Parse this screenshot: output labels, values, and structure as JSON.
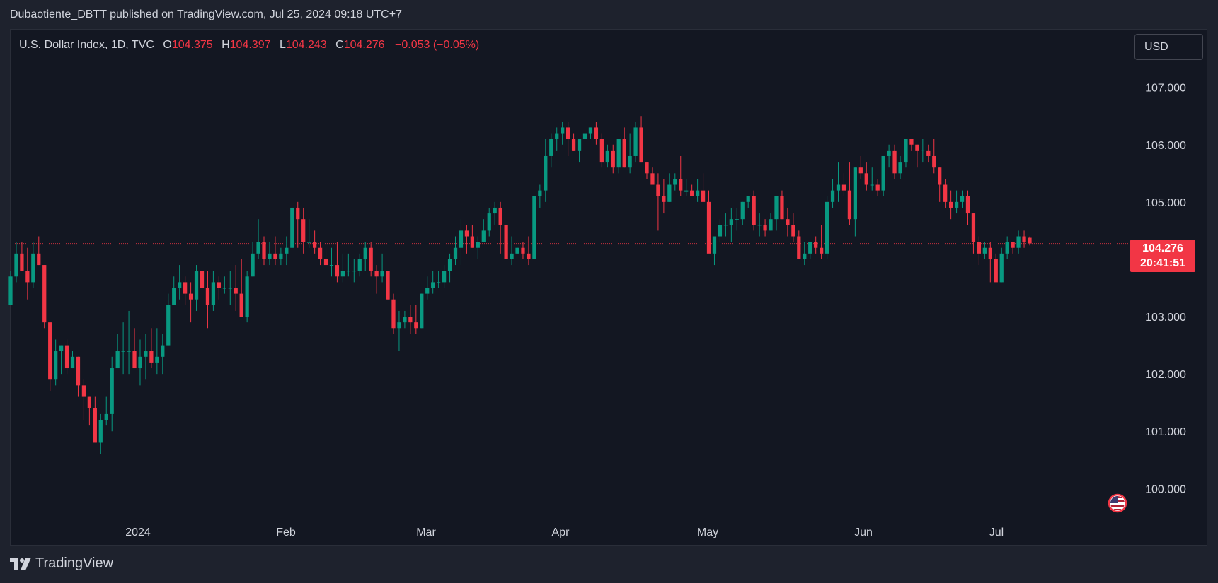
{
  "header": {
    "publisher_line": "Dubaotiente_DBTT published on TradingView.com, Jul 25, 2024 09:18 UTC+7"
  },
  "legend": {
    "symbol": "U.S. Dollar Index, 1D, TVC",
    "open_label": "O",
    "open": "104.375",
    "high_label": "H",
    "high": "104.397",
    "low_label": "L",
    "low": "104.243",
    "close_label": "C",
    "close": "104.276",
    "change": "−0.053 (−0.05%)"
  },
  "currency_button": "USD",
  "price_badge": {
    "price": "104.276",
    "countdown": "20:41:51"
  },
  "footer": {
    "brand": "TradingView"
  },
  "colors": {
    "up": "#089981",
    "down": "#f23645",
    "background": "#131722",
    "text": "#d1d4dc"
  },
  "icons": {
    "logo": "tradingview-logo-icon",
    "flag": "us-flag-icon"
  },
  "chart_data": {
    "type": "candlestick",
    "title": "U.S. Dollar Index, 1D, TVC",
    "ylim": [
      99.4,
      107.6
    ],
    "y_ticks": [
      "107.000",
      "106.000",
      "105.000",
      "103.000",
      "102.000",
      "101.000",
      "100.000"
    ],
    "x_ticks": [
      "2024",
      "Feb",
      "Mar",
      "Apr",
      "May",
      "Jun",
      "Jul"
    ],
    "last_price": 104.276,
    "series": [
      {
        "name": "ohlc",
        "values": [
          [
            103.2,
            103.8,
            103.2,
            103.7
          ],
          [
            103.7,
            104.3,
            103.6,
            104.1
          ],
          [
            104.1,
            104.3,
            103.8,
            103.8
          ],
          [
            103.8,
            104.2,
            103.3,
            103.6
          ],
          [
            103.6,
            104.3,
            103.5,
            104.1
          ],
          [
            104.1,
            104.4,
            103.9,
            103.9
          ],
          [
            103.9,
            103.9,
            102.8,
            102.9
          ],
          [
            102.9,
            102.9,
            101.7,
            101.9
          ],
          [
            101.9,
            102.6,
            101.8,
            102.4
          ],
          [
            102.4,
            102.5,
            102.0,
            102.5
          ],
          [
            102.5,
            102.6,
            102.0,
            102.1
          ],
          [
            102.1,
            102.4,
            102.1,
            102.3
          ],
          [
            102.3,
            102.3,
            101.6,
            101.8
          ],
          [
            101.8,
            101.9,
            101.2,
            101.6
          ],
          [
            101.6,
            101.6,
            101.1,
            101.4
          ],
          [
            101.4,
            101.6,
            100.8,
            100.8
          ],
          [
            100.8,
            101.3,
            100.6,
            101.2
          ],
          [
            101.2,
            101.6,
            101.1,
            101.3
          ],
          [
            101.3,
            102.3,
            101.0,
            102.1
          ],
          [
            102.1,
            102.7,
            102.1,
            102.4
          ],
          [
            102.4,
            102.9,
            102.0,
            102.4
          ],
          [
            102.4,
            103.1,
            102.0,
            102.4
          ],
          [
            102.4,
            102.8,
            102.1,
            102.1
          ],
          [
            102.1,
            102.6,
            101.8,
            102.3
          ],
          [
            102.3,
            102.7,
            101.9,
            102.4
          ],
          [
            102.4,
            102.8,
            102.1,
            102.2
          ],
          [
            102.2,
            102.8,
            102.0,
            102.3
          ],
          [
            102.3,
            102.7,
            102.0,
            102.5
          ],
          [
            102.5,
            103.4,
            102.5,
            103.2
          ],
          [
            103.2,
            103.7,
            103.3,
            103.5
          ],
          [
            103.5,
            103.9,
            103.3,
            103.6
          ],
          [
            103.6,
            103.7,
            103.2,
            103.4
          ],
          [
            103.4,
            103.6,
            102.9,
            103.3
          ],
          [
            103.3,
            103.9,
            103.1,
            103.8
          ],
          [
            103.8,
            104.0,
            103.3,
            103.5
          ],
          [
            103.5,
            103.8,
            102.8,
            103.2
          ],
          [
            103.2,
            103.8,
            103.1,
            103.6
          ],
          [
            103.6,
            103.7,
            103.3,
            103.5
          ],
          [
            103.5,
            103.7,
            103.4,
            103.5
          ],
          [
            103.5,
            103.8,
            103.2,
            103.5
          ],
          [
            103.5,
            103.9,
            103.1,
            103.4
          ],
          [
            103.4,
            104.0,
            103.0,
            103.0
          ],
          [
            103.0,
            103.8,
            102.9,
            103.7
          ],
          [
            103.7,
            104.3,
            103.7,
            104.1
          ],
          [
            104.1,
            104.7,
            104.0,
            104.3
          ],
          [
            104.3,
            104.4,
            103.9,
            104.0
          ],
          [
            104.0,
            104.3,
            103.9,
            104.1
          ],
          [
            104.1,
            104.4,
            103.9,
            104.0
          ],
          [
            104.0,
            104.2,
            103.9,
            104.1
          ],
          [
            104.1,
            104.4,
            103.9,
            104.2
          ],
          [
            104.2,
            104.9,
            104.2,
            104.9
          ],
          [
            104.9,
            105.0,
            104.2,
            104.7
          ],
          [
            104.7,
            104.9,
            104.1,
            104.3
          ],
          [
            104.3,
            104.7,
            104.2,
            104.3
          ],
          [
            104.3,
            104.5,
            104.1,
            104.2
          ],
          [
            104.2,
            104.3,
            103.9,
            104.0
          ],
          [
            104.0,
            104.2,
            103.9,
            103.9
          ],
          [
            103.9,
            104.2,
            103.7,
            103.9
          ],
          [
            103.9,
            104.3,
            103.6,
            103.7
          ],
          [
            103.7,
            104.1,
            103.6,
            103.8
          ],
          [
            103.8,
            104.1,
            103.7,
            103.8
          ],
          [
            103.8,
            104.0,
            103.6,
            103.8
          ],
          [
            103.8,
            104.1,
            103.7,
            104.0
          ],
          [
            104.0,
            104.3,
            103.8,
            104.2
          ],
          [
            104.2,
            104.3,
            103.7,
            103.8
          ],
          [
            103.8,
            103.9,
            103.4,
            103.7
          ],
          [
            103.7,
            104.1,
            103.6,
            103.8
          ],
          [
            103.8,
            103.8,
            103.3,
            103.3
          ],
          [
            103.3,
            103.4,
            102.7,
            102.8
          ],
          [
            102.8,
            103.1,
            102.4,
            102.9
          ],
          [
            102.9,
            103.1,
            102.8,
            103.0
          ],
          [
            103.0,
            103.2,
            102.7,
            102.9
          ],
          [
            102.9,
            103.2,
            102.7,
            102.8
          ],
          [
            102.8,
            103.4,
            102.8,
            103.4
          ],
          [
            103.4,
            103.7,
            103.3,
            103.5
          ],
          [
            103.5,
            103.8,
            103.4,
            103.6
          ],
          [
            103.6,
            103.8,
            103.5,
            103.6
          ],
          [
            103.6,
            103.9,
            103.5,
            103.8
          ],
          [
            103.8,
            104.1,
            103.6,
            104.0
          ],
          [
            104.0,
            104.4,
            103.9,
            104.2
          ],
          [
            104.2,
            104.7,
            103.9,
            104.5
          ],
          [
            104.5,
            104.6,
            104.1,
            104.4
          ],
          [
            104.4,
            104.6,
            104.2,
            104.2
          ],
          [
            104.2,
            104.4,
            104.0,
            104.3
          ],
          [
            104.3,
            104.7,
            104.3,
            104.5
          ],
          [
            104.5,
            104.9,
            104.4,
            104.8
          ],
          [
            104.8,
            105.0,
            104.6,
            104.9
          ],
          [
            104.9,
            105.0,
            104.1,
            104.6
          ],
          [
            104.6,
            104.6,
            104.0,
            104.0
          ],
          [
            104.0,
            104.4,
            103.9,
            104.1
          ],
          [
            104.1,
            104.2,
            104.1,
            104.2
          ],
          [
            104.2,
            104.3,
            104.0,
            104.1
          ],
          [
            104.1,
            104.4,
            103.9,
            104.0
          ],
          [
            104.0,
            105.1,
            104.0,
            105.1
          ],
          [
            105.1,
            105.3,
            104.9,
            105.2
          ],
          [
            105.2,
            106.1,
            105.0,
            105.8
          ],
          [
            105.8,
            106.2,
            105.6,
            106.1
          ],
          [
            106.1,
            106.3,
            105.9,
            106.2
          ],
          [
            106.2,
            106.4,
            106.0,
            106.3
          ],
          [
            106.3,
            106.4,
            105.8,
            106.1
          ],
          [
            106.1,
            106.2,
            105.9,
            105.9
          ],
          [
            105.9,
            106.1,
            105.7,
            106.1
          ],
          [
            106.1,
            106.2,
            106.0,
            106.2
          ],
          [
            106.2,
            106.3,
            106.1,
            106.3
          ],
          [
            106.3,
            106.4,
            106.0,
            106.1
          ],
          [
            106.1,
            106.2,
            105.6,
            105.7
          ],
          [
            105.7,
            106.0,
            105.6,
            105.9
          ],
          [
            105.9,
            106.0,
            105.5,
            105.6
          ],
          [
            105.6,
            106.1,
            105.5,
            106.1
          ],
          [
            106.1,
            106.3,
            105.6,
            105.6
          ],
          [
            105.6,
            106.2,
            105.5,
            105.8
          ],
          [
            105.8,
            106.4,
            105.7,
            106.3
          ],
          [
            106.3,
            106.5,
            105.7,
            105.7
          ],
          [
            105.7,
            105.7,
            105.4,
            105.5
          ],
          [
            105.5,
            105.6,
            105.3,
            105.3
          ],
          [
            105.3,
            105.5,
            104.5,
            105.1
          ],
          [
            105.1,
            105.4,
            104.8,
            105.0
          ],
          [
            105.0,
            105.5,
            105.0,
            105.3
          ],
          [
            105.3,
            105.5,
            105.2,
            105.4
          ],
          [
            105.4,
            105.8,
            105.1,
            105.2
          ],
          [
            105.2,
            105.4,
            105.1,
            105.2
          ],
          [
            105.2,
            105.3,
            105.1,
            105.1
          ],
          [
            105.1,
            105.4,
            105.0,
            105.2
          ],
          [
            105.2,
            105.5,
            105.0,
            105.0
          ],
          [
            105.0,
            105.2,
            104.7,
            104.1
          ],
          [
            104.1,
            104.3,
            103.9,
            104.4
          ],
          [
            104.4,
            104.7,
            104.3,
            104.6
          ],
          [
            104.6,
            104.8,
            104.4,
            104.6
          ],
          [
            104.6,
            104.9,
            104.3,
            104.7
          ],
          [
            104.7,
            104.9,
            104.5,
            104.7
          ],
          [
            104.7,
            105.0,
            104.6,
            105.0
          ],
          [
            105.0,
            105.1,
            104.9,
            105.1
          ],
          [
            105.1,
            105.2,
            104.5,
            104.6
          ],
          [
            104.6,
            104.8,
            104.4,
            104.6
          ],
          [
            104.6,
            104.7,
            104.4,
            104.5
          ],
          [
            104.5,
            104.8,
            104.5,
            104.7
          ],
          [
            104.7,
            105.1,
            104.5,
            105.1
          ],
          [
            105.1,
            105.2,
            104.7,
            104.7
          ],
          [
            104.7,
            104.9,
            104.4,
            104.6
          ],
          [
            104.6,
            104.8,
            104.3,
            104.4
          ],
          [
            104.4,
            104.5,
            104.0,
            104.0
          ],
          [
            104.0,
            104.3,
            103.9,
            104.1
          ],
          [
            104.1,
            104.3,
            104.0,
            104.3
          ],
          [
            104.3,
            104.4,
            104.1,
            104.2
          ],
          [
            104.2,
            104.6,
            104.0,
            104.1
          ],
          [
            104.1,
            105.1,
            104.0,
            105.0
          ],
          [
            105.0,
            105.4,
            104.9,
            105.2
          ],
          [
            105.2,
            105.7,
            105.0,
            105.3
          ],
          [
            105.3,
            105.5,
            105.1,
            105.2
          ],
          [
            105.2,
            105.7,
            104.6,
            104.7
          ],
          [
            104.7,
            105.6,
            104.4,
            105.6
          ],
          [
            105.6,
            105.8,
            105.4,
            105.5
          ],
          [
            105.5,
            105.7,
            105.2,
            105.3
          ],
          [
            105.3,
            105.6,
            105.2,
            105.3
          ],
          [
            105.3,
            105.4,
            105.1,
            105.2
          ],
          [
            105.2,
            105.8,
            105.1,
            105.8
          ],
          [
            105.8,
            106.0,
            105.6,
            105.9
          ],
          [
            105.9,
            106.0,
            105.4,
            105.5
          ],
          [
            105.5,
            105.8,
            105.4,
            105.7
          ],
          [
            105.7,
            106.1,
            105.6,
            106.1
          ],
          [
            106.1,
            106.1,
            105.9,
            106.0
          ],
          [
            106.0,
            106.0,
            105.6,
            105.9
          ],
          [
            105.9,
            106.1,
            105.7,
            105.9
          ],
          [
            105.9,
            106.0,
            105.7,
            105.8
          ],
          [
            105.8,
            106.1,
            105.5,
            105.6
          ],
          [
            105.6,
            105.6,
            105.0,
            105.3
          ],
          [
            105.3,
            105.4,
            104.9,
            105.0
          ],
          [
            105.0,
            105.2,
            104.7,
            104.9
          ],
          [
            104.9,
            105.2,
            104.8,
            105.0
          ],
          [
            105.0,
            105.2,
            104.9,
            105.1
          ],
          [
            105.1,
            105.2,
            104.6,
            104.8
          ],
          [
            104.8,
            104.8,
            104.1,
            104.3
          ],
          [
            104.3,
            104.4,
            103.9,
            104.1
          ],
          [
            104.1,
            104.3,
            104.0,
            104.2
          ],
          [
            104.2,
            104.3,
            103.6,
            104.0
          ],
          [
            104.0,
            104.1,
            103.7,
            103.6
          ],
          [
            103.6,
            104.2,
            103.6,
            104.1
          ],
          [
            104.1,
            104.4,
            104.0,
            104.3
          ],
          [
            104.3,
            104.3,
            104.1,
            104.2
          ],
          [
            104.2,
            104.5,
            104.1,
            104.4
          ],
          [
            104.4,
            104.5,
            104.2,
            104.3
          ],
          [
            104.375,
            104.397,
            104.243,
            104.276
          ]
        ]
      }
    ]
  }
}
